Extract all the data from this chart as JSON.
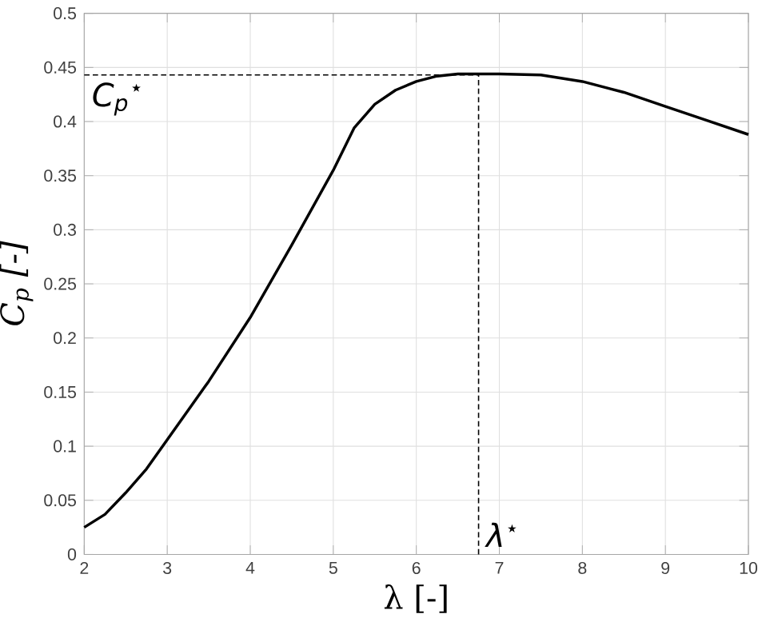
{
  "chart_data": {
    "type": "line",
    "xlabel": "λ [-]",
    "ylabel": "C$_{p}$ [-]",
    "x": [
      2,
      2.25,
      2.5,
      2.75,
      3,
      3.5,
      4,
      4.5,
      5,
      5.25,
      5.5,
      5.75,
      6,
      6.25,
      6.5,
      6.75,
      7,
      7.5,
      8,
      8.5,
      9,
      9.5,
      10
    ],
    "series": [
      {
        "color": "#000000",
        "values": [
          0.025,
          0.037,
          0.057,
          0.079,
          0.106,
          0.16,
          0.219,
          0.286,
          0.355,
          0.394,
          0.416,
          0.429,
          0.437,
          0.442,
          0.444,
          0.444,
          0.444,
          0.443,
          0.437,
          0.427,
          0.414,
          0.401,
          0.388
        ]
      }
    ],
    "xlim": [
      2,
      10
    ],
    "ylim": [
      0,
      0.5
    ],
    "xticks": [
      2,
      3,
      4,
      5,
      6,
      7,
      8,
      9,
      10
    ],
    "yticks": [
      0,
      0.05,
      0.1,
      0.15,
      0.2,
      0.25,
      0.3,
      0.35,
      0.4,
      0.45,
      0.5
    ],
    "grid": true,
    "marker": "none",
    "line_style": "solid",
    "ref_lines": [
      {
        "axis": "y",
        "value": 0.443,
        "label": "C$_{p}$$^{⋆}$",
        "line_style": "dashed"
      },
      {
        "axis": "x",
        "value": 6.75,
        "label": "λ$^{⋆}$",
        "line_style": "dashed"
      }
    ]
  }
}
